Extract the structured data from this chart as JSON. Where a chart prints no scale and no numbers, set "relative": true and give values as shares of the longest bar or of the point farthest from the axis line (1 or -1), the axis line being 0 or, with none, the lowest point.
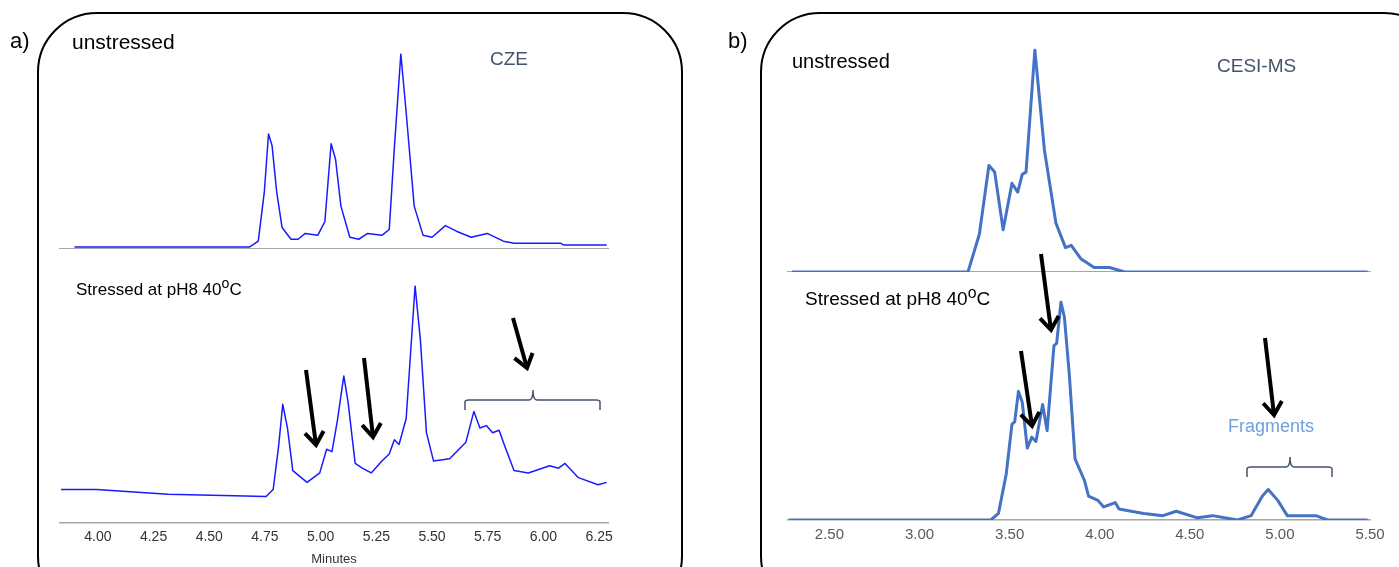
{
  "chart_data": [
    {
      "type": "line",
      "title": "unstressed",
      "annotations": [
        "a)",
        "CZE"
      ],
      "relative": true,
      "tick_labels": false,
      "xlim": [
        3.83,
        6.29
      ],
      "color": "#1a1aff",
      "x": [
        3.895,
        4.68,
        4.72,
        4.747,
        4.766,
        4.782,
        4.803,
        4.827,
        4.867,
        4.899,
        4.931,
        4.987,
        5.019,
        5.047,
        5.067,
        5.091,
        5.131,
        5.171,
        5.211,
        5.275,
        5.308,
        5.331,
        5.36,
        5.384,
        5.42,
        5.46,
        5.5,
        5.56,
        5.612,
        5.676,
        5.748,
        5.82,
        5.868,
        6.076,
        6.092,
        6.188,
        6.284
      ],
      "values": [
        0.01,
        0.01,
        0.04,
        0.29,
        0.59,
        0.53,
        0.29,
        0.11,
        0.05,
        0.05,
        0.08,
        0.07,
        0.14,
        0.54,
        0.46,
        0.22,
        0.06,
        0.05,
        0.08,
        0.07,
        0.1,
        0.52,
        1,
        0.7,
        0.22,
        0.07,
        0.06,
        0.12,
        0.09,
        0.06,
        0.08,
        0.04,
        0.03,
        0.03,
        0.02,
        0.02,
        0.02
      ]
    },
    {
      "type": "line",
      "title": "Stressed at pH8 40$^{o}$C",
      "xlabel": "Minutes",
      "relative": true,
      "tick_labels": "x",
      "xlim": [
        3.83,
        6.29
      ],
      "color": "#1a1aff",
      "xticks": [
        {
          "value": 4,
          "label": "4.00"
        },
        {
          "value": 4.25,
          "label": "4.25"
        },
        {
          "value": 4.5,
          "label": "4.50"
        },
        {
          "value": 4.75,
          "label": "4.75"
        },
        {
          "value": 5,
          "label": "5.00"
        },
        {
          "value": 5.25,
          "label": "5.25"
        },
        {
          "value": 5.5,
          "label": "5.50"
        },
        {
          "value": 5.75,
          "label": "5.75"
        },
        {
          "value": 6,
          "label": "6.00"
        },
        {
          "value": 6.25,
          "label": "6.25"
        }
      ],
      "x": [
        3.834,
        3.994,
        4.314,
        4.755,
        4.787,
        4.811,
        4.83,
        4.851,
        4.875,
        4.939,
        4.996,
        5.027,
        5.051,
        5.075,
        5.104,
        5.123,
        5.155,
        5.187,
        5.227,
        5.275,
        5.308,
        5.331,
        5.352,
        5.384,
        5.424,
        5.448,
        5.475,
        5.507,
        5.579,
        5.652,
        5.688,
        5.715,
        5.744,
        5.772,
        5.801,
        5.828,
        5.868,
        5.932,
        6.028,
        6.068,
        6.097,
        6.157,
        6.245,
        6.284
      ],
      "values": [
        0.14,
        0.14,
        0.12,
        0.11,
        0.14,
        0.32,
        0.5,
        0.4,
        0.22,
        0.17,
        0.21,
        0.31,
        0.3,
        0.43,
        0.62,
        0.51,
        0.25,
        0.23,
        0.21,
        0.26,
        0.29,
        0.35,
        0.33,
        0.44,
        1,
        0.77,
        0.38,
        0.26,
        0.27,
        0.34,
        0.47,
        0.4,
        0.41,
        0.38,
        0.39,
        0.32,
        0.22,
        0.21,
        0.24,
        0.23,
        0.25,
        0.19,
        0.16,
        0.17
      ]
    },
    {
      "type": "line",
      "title": "unstressed",
      "annotations": [
        "b)",
        "CESI-MS"
      ],
      "relative": true,
      "tick_labels": false,
      "xlim": [
        2.27,
        5.5
      ],
      "color": "#4472c4",
      "x": [
        2.292,
        3.269,
        3.332,
        3.385,
        3.417,
        3.464,
        3.513,
        3.545,
        3.57,
        3.591,
        3.64,
        3.693,
        3.757,
        3.81,
        3.842,
        3.895,
        3.969,
        4.054,
        4.139,
        5.487
      ],
      "values": [
        0,
        0,
        0.17,
        0.48,
        0.45,
        0.19,
        0.4,
        0.36,
        0.44,
        0.45,
        1,
        0.55,
        0.22,
        0.11,
        0.12,
        0.06,
        0.02,
        0.02,
        0,
        0
      ]
    },
    {
      "type": "line",
      "title": "Stressed at pH8 40$^{o}$C",
      "annotations": [
        "Fragments"
      ],
      "relative": true,
      "tick_labels": "x",
      "xlim": [
        2.27,
        5.5
      ],
      "color": "#4472c4",
      "xticks": [
        {
          "value": 2.5,
          "label": "2.50"
        },
        {
          "value": 3,
          "label": "3.00"
        },
        {
          "value": 3.5,
          "label": "3.50"
        },
        {
          "value": 4,
          "label": "4.00"
        },
        {
          "value": 4.5,
          "label": "4.50"
        },
        {
          "value": 5,
          "label": "5.00"
        },
        {
          "value": 5.5,
          "label": "5.50"
        }
      ],
      "x": [
        2.275,
        3.396,
        3.438,
        3.481,
        3.513,
        3.528,
        3.549,
        3.57,
        3.598,
        3.623,
        3.646,
        3.683,
        3.708,
        3.746,
        3.761,
        3.785,
        3.804,
        3.831,
        3.863,
        3.916,
        3.938,
        3.99,
        4.022,
        4.086,
        4.107,
        4.245,
        4.351,
        4.425,
        4.542,
        4.627,
        4.765,
        4.84,
        4.903,
        4.935,
        4.988,
        5.041,
        5.2,
        5.264,
        5.487
      ],
      "values": [
        0,
        0,
        0.03,
        0.21,
        0.44,
        0.45,
        0.59,
        0.54,
        0.33,
        0.38,
        0.36,
        0.53,
        0.41,
        0.8,
        0.81,
        1,
        0.93,
        0.67,
        0.28,
        0.18,
        0.11,
        0.09,
        0.06,
        0.08,
        0.05,
        0.03,
        0.02,
        0.04,
        0.01,
        0.02,
        0,
        0.02,
        0.11,
        0.14,
        0.09,
        0.02,
        0.02,
        0,
        0
      ]
    }
  ]
}
